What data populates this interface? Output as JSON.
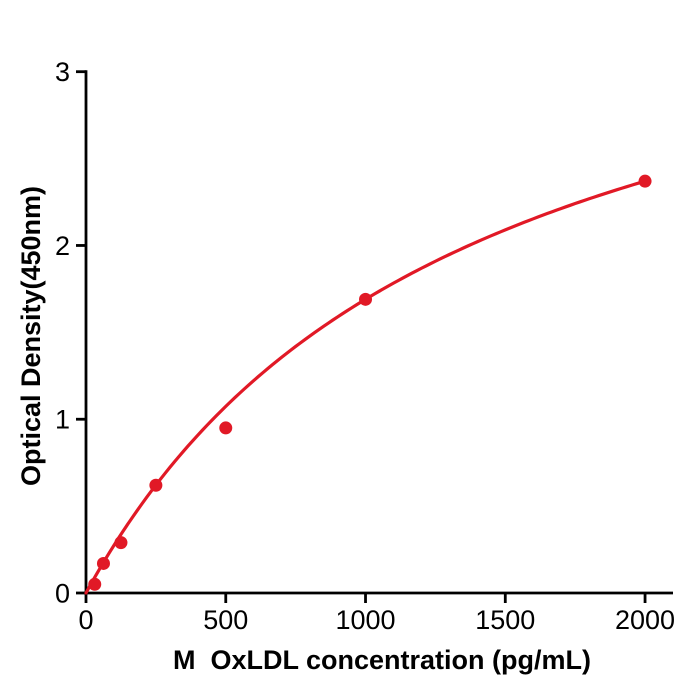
{
  "figure": {
    "background": "#ffffff",
    "axis_color": "#000000",
    "accent_color": "#e11926"
  },
  "chart_data": {
    "type": "scatter",
    "title": "",
    "xlabel": "M  OxLDL concentration (pg/mL)",
    "ylabel": "Optical Density(450nm)",
    "xlim": [
      0,
      2100
    ],
    "ylim": [
      0,
      3
    ],
    "x_ticks": [
      0,
      500,
      1000,
      1500,
      2000
    ],
    "y_ticks": [
      0,
      1,
      2,
      3
    ],
    "grid": false,
    "legend": null,
    "marker_color": "#e11926",
    "line_color": "#e11926",
    "points": [
      {
        "x": 31.25,
        "y": 0.05
      },
      {
        "x": 62.5,
        "y": 0.17
      },
      {
        "x": 125,
        "y": 0.29
      },
      {
        "x": 250,
        "y": 0.62
      },
      {
        "x": 500,
        "y": 0.95
      },
      {
        "x": 1000,
        "y": 1.69
      },
      {
        "x": 2000,
        "y": 2.37
      }
    ],
    "fit_curve": {
      "model": "michaelis-menten",
      "vmax": 3.965,
      "km": 1346,
      "x_range": [
        0,
        2000
      ]
    }
  }
}
